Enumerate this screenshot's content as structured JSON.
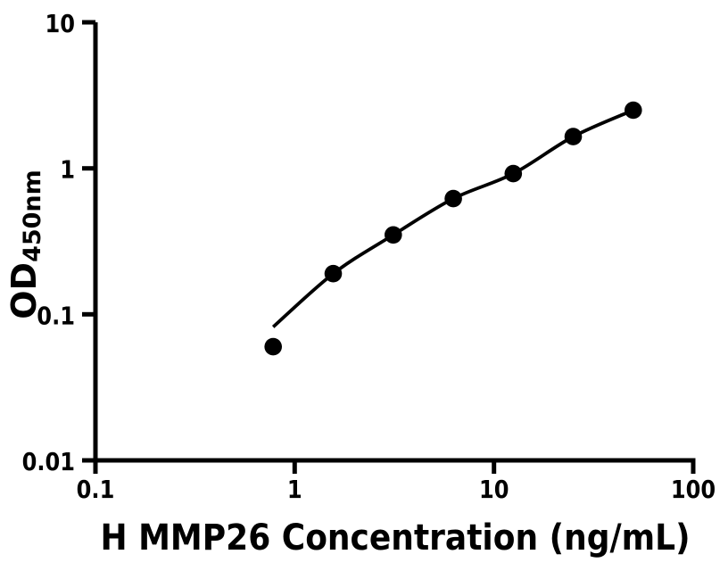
{
  "figure": {
    "background_color": "#ffffff",
    "foreground_color": "#000000"
  },
  "chart_data": {
    "type": "scatter",
    "title": "",
    "xlabel": "H MMP26 Concentration (ng/mL)",
    "ylabel": "OD",
    "ylabel_subscript": "450nm",
    "x_scale": "log",
    "y_scale": "log",
    "xlim": [
      0.1,
      100
    ],
    "ylim": [
      0.01,
      10
    ],
    "x_ticks": [
      0.1,
      1,
      10,
      100
    ],
    "x_tick_labels": [
      "0.1",
      "1",
      "10",
      "100"
    ],
    "y_ticks": [
      0.01,
      0.1,
      1,
      10
    ],
    "y_tick_labels": [
      "0.01",
      "0.1",
      "1",
      "10"
    ],
    "grid": false,
    "legend": false,
    "marker_color": "#000000",
    "line_color": "#000000",
    "series": [
      {
        "name": "standard-points",
        "type": "scatter",
        "marker": "circle",
        "x": [
          0.78,
          1.56,
          3.125,
          6.25,
          12.5,
          25,
          50
        ],
        "y": [
          0.06,
          0.19,
          0.35,
          0.62,
          0.92,
          1.65,
          2.5
        ]
      },
      {
        "name": "fit-curve",
        "type": "line",
        "x": [
          0.78,
          1.56,
          3.125,
          6.25,
          12.5,
          25,
          50
        ],
        "y": [
          0.082,
          0.19,
          0.35,
          0.62,
          0.92,
          1.65,
          2.5
        ]
      }
    ]
  }
}
